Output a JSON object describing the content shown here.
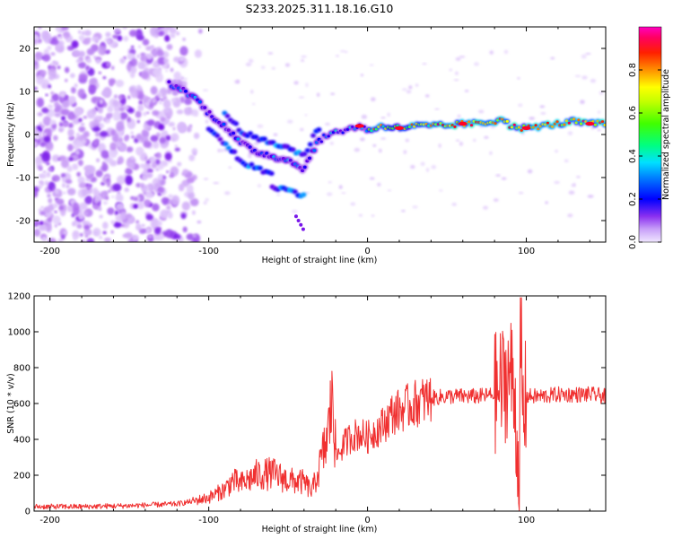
{
  "title": "S233.2025.311.18.16.G10",
  "chart_data": [
    {
      "type": "heatmap",
      "name": "spectrogram",
      "xlabel": "Height of straight line (km)",
      "ylabel": "Frequency (Hz)",
      "xlim": [
        -210,
        150
      ],
      "ylim": [
        -25,
        25
      ],
      "xticks": [
        -200,
        -100,
        0,
        100
      ],
      "xtick_labels": [
        "-200",
        "-100",
        "0",
        "100"
      ],
      "yticks": [
        20,
        10,
        0,
        -10,
        -20
      ],
      "ytick_labels": [
        "20",
        "10",
        "0",
        "-10",
        "-20"
      ],
      "colorbar": {
        "label": "Normalized spectral amplitude",
        "range": [
          0,
          1
        ],
        "ticks": [
          0.0,
          0.2,
          0.4,
          0.6,
          0.8
        ],
        "tick_labels": [
          "0.0",
          "0.2",
          "0.4",
          "0.6",
          "0.8"
        ],
        "colormap": [
          "#f0e6ff",
          "#b070f0",
          "#6a00e8",
          "#0000ff",
          "#00c0ff",
          "#00ff90",
          "#80ff00",
          "#ffff00",
          "#ff8000",
          "#ff0000",
          "#ff00c0"
        ]
      },
      "ridge": {
        "description": "dominant frequency track",
        "x": [
          -125,
          -110,
          -100,
          -90,
          -80,
          -70,
          -60,
          -50,
          -40,
          -32,
          -25,
          -15,
          -5,
          0,
          10,
          20,
          30,
          40,
          50,
          60,
          70,
          80,
          85,
          90,
          95,
          100,
          110,
          120,
          130,
          140,
          150
        ],
        "y": [
          12,
          9,
          5,
          2,
          -2,
          -4,
          -5,
          -6,
          -8,
          -2,
          0,
          1,
          2,
          1,
          2,
          1.5,
          2,
          2,
          2,
          2.5,
          2.5,
          3,
          4,
          2,
          1.5,
          1.5,
          2,
          2.5,
          3,
          2.5,
          2.5
        ]
      }
    },
    {
      "type": "line",
      "name": "snr",
      "xlabel": "Height of straight line (km)",
      "ylabel": "SNR (10 * v/v)",
      "xlim": [
        -210,
        150
      ],
      "ylim": [
        0,
        1200
      ],
      "xticks": [
        -200,
        -100,
        0,
        100
      ],
      "xtick_labels": [
        "-200",
        "-100",
        "0",
        "100"
      ],
      "yticks": [
        0,
        200,
        400,
        600,
        800,
        1000,
        1200
      ],
      "ytick_labels": [
        "0",
        "200",
        "400",
        "600",
        "800",
        "1000",
        "1200"
      ],
      "color": "#f03030",
      "series": [
        {
          "name": "SNR envelope",
          "x": [
            -210,
            -180,
            -150,
            -120,
            -110,
            -100,
            -90,
            -85,
            -80,
            -70,
            -60,
            -50,
            -40,
            -35,
            -30,
            -25,
            -22,
            -20,
            -15,
            -10,
            -5,
            0,
            5,
            10,
            15,
            20,
            30,
            40,
            50,
            60,
            70,
            80,
            85,
            90,
            93,
            95,
            97,
            100,
            110,
            120,
            130,
            140,
            150
          ],
          "y": [
            25,
            25,
            30,
            40,
            55,
            75,
            120,
            170,
            150,
            200,
            210,
            170,
            160,
            110,
            250,
            420,
            650,
            300,
            370,
            420,
            430,
            410,
            450,
            480,
            540,
            560,
            600,
            630,
            640,
            640,
            640,
            650,
            700,
            780,
            600,
            250,
            500,
            640,
            640,
            650,
            650,
            650,
            640
          ]
        }
      ]
    }
  ]
}
